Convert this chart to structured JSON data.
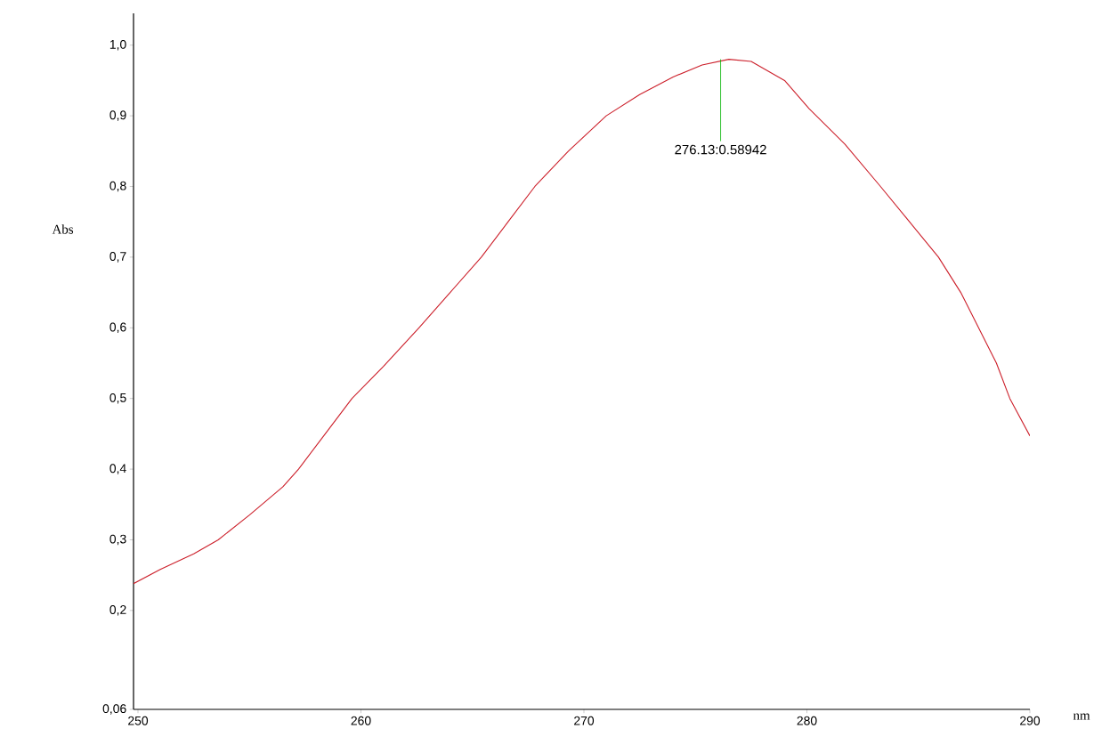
{
  "chart_data": {
    "type": "line",
    "xlabel": "nm",
    "ylabel": "Abs",
    "color": "#cc1f2a",
    "x": [
      249.8,
      251,
      252.5,
      253.6,
      255,
      256.5,
      257.2,
      258.4,
      259.6,
      261,
      262.6,
      264,
      265.4,
      266.6,
      267.8,
      269.3,
      271,
      272.5,
      274,
      275.3,
      276.5,
      277.5,
      279,
      280.1,
      281.7,
      283.3,
      284.6,
      285.9,
      286.9,
      287.7,
      288.5,
      289.1,
      290
    ],
    "values": [
      0.238,
      0.258,
      0.28,
      0.3,
      0.335,
      0.375,
      0.4,
      0.45,
      0.5,
      0.545,
      0.6,
      0.65,
      0.7,
      0.75,
      0.8,
      0.85,
      0.9,
      0.93,
      0.955,
      0.972,
      0.98,
      0.977,
      0.95,
      0.91,
      0.86,
      0.8,
      0.75,
      0.7,
      0.65,
      0.6,
      0.55,
      0.5,
      0.447
    ],
    "xlim": [
      249.8,
      290
    ],
    "ylim": [
      0.06,
      1.045
    ],
    "xticks": [
      250,
      260,
      270,
      280,
      290
    ],
    "yticks": [
      {
        "value": 0.06,
        "label": "0,06"
      },
      {
        "value": 0.2,
        "label": "0,2"
      },
      {
        "value": 0.3,
        "label": "0,3"
      },
      {
        "value": 0.4,
        "label": "0,4"
      },
      {
        "value": 0.5,
        "label": "0,5"
      },
      {
        "value": 0.6,
        "label": "0,6"
      },
      {
        "value": 0.7,
        "label": "0,7"
      },
      {
        "value": 0.8,
        "label": "0,8"
      },
      {
        "value": 0.9,
        "label": "0,9"
      },
      {
        "value": 1.0,
        "label": "1,0"
      }
    ],
    "annotations": [
      {
        "text": "276.13:0.58942",
        "x": 276.13,
        "y": 0.98
      }
    ]
  }
}
